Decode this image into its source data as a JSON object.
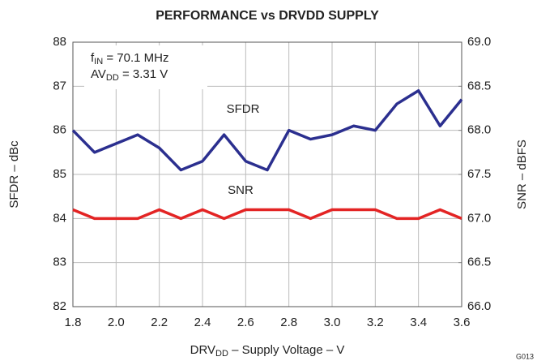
{
  "chart_data": {
    "type": "line",
    "title": "PERFORMANCE vs DRVDD SUPPLY",
    "x_label": [
      "DRV",
      "DD",
      " – Supply Voltage – V"
    ],
    "y_label": "SFDR – dBc",
    "y2_label": "SNR – dBFS",
    "annotation": [
      [
        "f",
        "IN",
        " = 70.1 MHz"
      ],
      [
        "AV",
        "DD",
        " = 3.31 V"
      ]
    ],
    "figure_id": "G013",
    "x": [
      1.8,
      1.9,
      2.0,
      2.1,
      2.2,
      2.3,
      2.4,
      2.5,
      2.6,
      2.7,
      2.8,
      2.9,
      3.0,
      3.1,
      3.2,
      3.3,
      3.4,
      3.5,
      3.6
    ],
    "series": [
      {
        "name": "SFDR",
        "color": "#2b2f8f",
        "axis": "y",
        "values": [
          86.0,
          85.5,
          85.7,
          85.9,
          85.6,
          85.1,
          85.3,
          85.9,
          85.3,
          85.1,
          86.0,
          85.8,
          85.9,
          86.1,
          86.0,
          86.6,
          86.9,
          86.1,
          86.7
        ]
      },
      {
        "name": "SNR",
        "color": "#e32424",
        "axis": "y2",
        "values": [
          67.1,
          67.0,
          67.0,
          67.0,
          67.1,
          67.0,
          67.1,
          67.0,
          67.1,
          67.1,
          67.1,
          67.0,
          67.1,
          67.1,
          67.1,
          67.0,
          67.0,
          67.1,
          67.0
        ]
      }
    ],
    "xlim": [
      1.8,
      3.6
    ],
    "xticks": [
      1.8,
      {
        "value": 2.0,
        "label": "2.0"
      },
      2.2,
      2.4,
      2.6,
      2.8,
      {
        "value": 3.0,
        "label": "3.0"
      },
      3.2,
      3.4,
      3.6
    ],
    "ylim": [
      82,
      88
    ],
    "yticks": [
      82,
      83,
      84,
      85,
      86,
      87,
      88
    ],
    "y2lim": [
      66,
      69
    ],
    "y2ticks": [
      {
        "value": 66,
        "label": "66.0"
      },
      66.5,
      {
        "value": 67,
        "label": "67.0"
      },
      67.5,
      {
        "value": 68,
        "label": "68.0"
      },
      68.5,
      {
        "value": 69,
        "label": "69.0"
      }
    ],
    "grid": true
  }
}
